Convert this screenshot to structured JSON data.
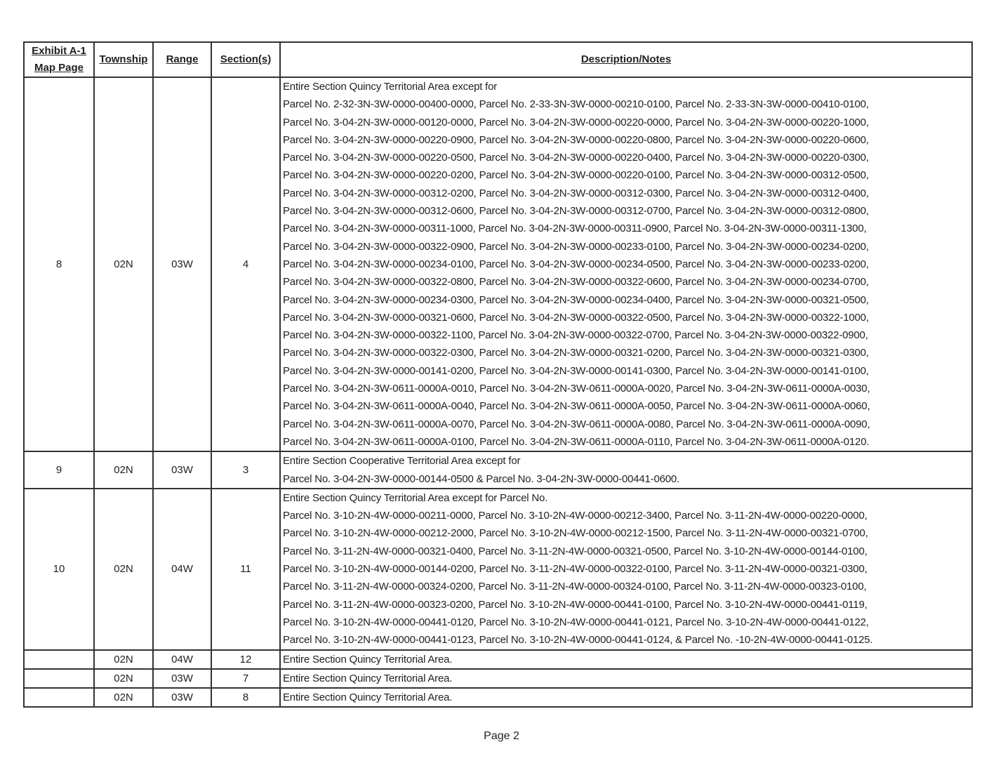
{
  "headers": {
    "map_page_line1": "Exhibit A-1",
    "map_page_line2": "Map Page",
    "township": "Township",
    "range": "Range",
    "sections": "Section(s)",
    "description": "Description/Notes"
  },
  "rows": [
    {
      "map_page": "8",
      "township": "02N",
      "range": "03W",
      "sections": "4",
      "lines": [
        "Entire Section Quincy Territorial Area except for",
        "Parcel No. 2-32-3N-3W-0000-00400-0000, Parcel No. 2-33-3N-3W-0000-00210-0100, Parcel No. 2-33-3N-3W-0000-00410-0100,",
        "Parcel No. 3-04-2N-3W-0000-00120-0000, Parcel No. 3-04-2N-3W-0000-00220-0000, Parcel No. 3-04-2N-3W-0000-00220-1000,",
        "Parcel No. 3-04-2N-3W-0000-00220-0900, Parcel No. 3-04-2N-3W-0000-00220-0800, Parcel No. 3-04-2N-3W-0000-00220-0600,",
        "Parcel No. 3-04-2N-3W-0000-00220-0500, Parcel No. 3-04-2N-3W-0000-00220-0400, Parcel No. 3-04-2N-3W-0000-00220-0300,",
        "Parcel No. 3-04-2N-3W-0000-00220-0200, Parcel No. 3-04-2N-3W-0000-00220-0100, Parcel No. 3-04-2N-3W-0000-00312-0500,",
        "Parcel No. 3-04-2N-3W-0000-00312-0200, Parcel No. 3-04-2N-3W-0000-00312-0300, Parcel No. 3-04-2N-3W-0000-00312-0400,",
        "Parcel No. 3-04-2N-3W-0000-00312-0600, Parcel No. 3-04-2N-3W-0000-00312-0700, Parcel No. 3-04-2N-3W-0000-00312-0800,",
        "Parcel No. 3-04-2N-3W-0000-00311-1000, Parcel No. 3-04-2N-3W-0000-00311-0900, Parcel No. 3-04-2N-3W-0000-00311-1300,",
        "Parcel No.  3-04-2N-3W-0000-00322-0900, Parcel No. 3-04-2N-3W-0000-00233-0100, Parcel No. 3-04-2N-3W-0000-00234-0200,",
        "Parcel No. 3-04-2N-3W-0000-00234-0100, Parcel No. 3-04-2N-3W-0000-00234-0500, Parcel No. 3-04-2N-3W-0000-00233-0200,",
        "Parcel No. 3-04-2N-3W-0000-00322-0800, Parcel No. 3-04-2N-3W-0000-00322-0600, Parcel No. 3-04-2N-3W-0000-00234-0700,",
        "Parcel No. 3-04-2N-3W-0000-00234-0300, Parcel No. 3-04-2N-3W-0000-00234-0400, Parcel No. 3-04-2N-3W-0000-00321-0500,",
        "Parcel No. 3-04-2N-3W-0000-00321-0600, Parcel No. 3-04-2N-3W-0000-00322-0500, Parcel No. 3-04-2N-3W-0000-00322-1000,",
        "Parcel No. 3-04-2N-3W-0000-00322-1100, Parcel No. 3-04-2N-3W-0000-00322-0700, Parcel No. 3-04-2N-3W-0000-00322-0900,",
        "Parcel No. 3-04-2N-3W-0000-00322-0300, Parcel No. 3-04-2N-3W-0000-00321-0200, Parcel No. 3-04-2N-3W-0000-00321-0300,",
        "Parcel No. 3-04-2N-3W-0000-00141-0200, Parcel No. 3-04-2N-3W-0000-00141-0300, Parcel No. 3-04-2N-3W-0000-00141-0100,",
        "Parcel No. 3-04-2N-3W-0611-0000A-0010, Parcel No. 3-04-2N-3W-0611-0000A-0020, Parcel No. 3-04-2N-3W-0611-0000A-0030,",
        "Parcel No. 3-04-2N-3W-0611-0000A-0040, Parcel No. 3-04-2N-3W-0611-0000A-0050, Parcel No. 3-04-2N-3W-0611-0000A-0060,",
        "Parcel No. 3-04-2N-3W-0611-0000A-0070, Parcel No. 3-04-2N-3W-0611-0000A-0080, Parcel No. 3-04-2N-3W-0611-0000A-0090,",
        "Parcel No. 3-04-2N-3W-0611-0000A-0100, Parcel No. 3-04-2N-3W-0611-0000A-0110, Parcel No. 3-04-2N-3W-0611-0000A-0120."
      ]
    },
    {
      "map_page": "9",
      "township": "02N",
      "range": "03W",
      "sections": "3",
      "lines": [
        "Entire Section Cooperative Territorial Area except for",
        "Parcel No. 3-04-2N-3W-0000-00144-0500 & Parcel No. 3-04-2N-3W-0000-00441-0600."
      ]
    },
    {
      "map_page": "10",
      "township": "02N",
      "range": "04W",
      "sections": "11",
      "lines": [
        "Entire Section Quincy Territorial Area except for Parcel No.",
        "Parcel No. 3-10-2N-4W-0000-00211-0000, Parcel No. 3-10-2N-4W-0000-00212-3400, Parcel No. 3-11-2N-4W-0000-00220-0000,",
        "Parcel No. 3-10-2N-4W-0000-00212-2000, Parcel No. 3-10-2N-4W-0000-00212-1500, Parcel No. 3-11-2N-4W-0000-00321-0700,",
        "Parcel No. 3-11-2N-4W-0000-00321-0400, Parcel No. 3-11-2N-4W-0000-00321-0500, Parcel No. 3-10-2N-4W-0000-00144-0100,",
        "Parcel No. 3-10-2N-4W-0000-00144-0200, Parcel No. 3-11-2N-4W-0000-00322-0100, Parcel No. 3-11-2N-4W-0000-00321-0300,",
        "Parcel No. 3-11-2N-4W-0000-00324-0200, Parcel No. 3-11-2N-4W-0000-00324-0100, Parcel No. 3-11-2N-4W-0000-00323-0100,",
        "Parcel No. 3-11-2N-4W-0000-00323-0200, Parcel No. 3-10-2N-4W-0000-00441-0100, Parcel No. 3-10-2N-4W-0000-00441-0119,",
        "Parcel No. 3-10-2N-4W-0000-00441-0120, Parcel No. 3-10-2N-4W-0000-00441-0121, Parcel No. 3-10-2N-4W-0000-00441-0122,",
        "Parcel No. 3-10-2N-4W-0000-00441-0123, Parcel No. 3-10-2N-4W-0000-00441-0124, & Parcel No. -10-2N-4W-0000-00441-0125."
      ]
    },
    {
      "map_page": "",
      "township": "02N",
      "range": "04W",
      "sections": "12",
      "lines": [
        "Entire Section Quincy Territorial Area."
      ]
    },
    {
      "map_page": "",
      "township": "02N",
      "range": "03W",
      "sections": "7",
      "lines": [
        "Entire Section Quincy Territorial Area."
      ]
    },
    {
      "map_page": "",
      "township": "02N",
      "range": "03W",
      "sections": "8",
      "lines": [
        "Entire Section Quincy Territorial Area."
      ]
    }
  ],
  "footer": {
    "page_label": "Page 2"
  }
}
